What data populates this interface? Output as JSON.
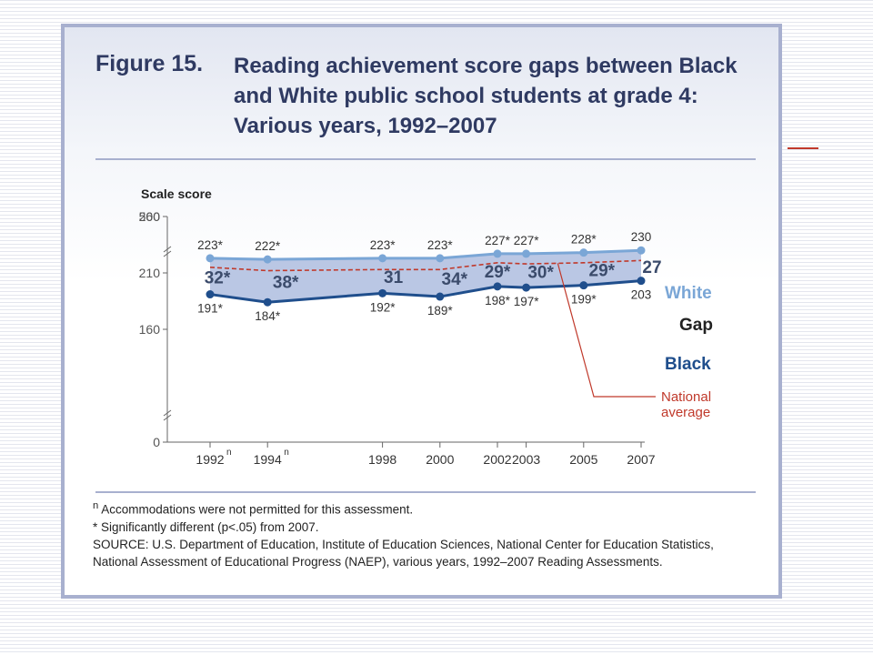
{
  "slide": {
    "accent_color": "#c0392b"
  },
  "figure": {
    "number": "Figure 15.",
    "title": "Reading achievement score gaps between Black and White public school students at grade 4: Various years, 1992–2007"
  },
  "chart_data": {
    "type": "line",
    "ylabel": "Scale score",
    "y_ticks": [
      "0",
      "160",
      "210",
      "260",
      "500"
    ],
    "axis_breaks": "between 0 and 160, and between 260 and 500",
    "categories": [
      "1992",
      "1994",
      "1998",
      "2000",
      "2002",
      "2003",
      "2005",
      "2007"
    ],
    "category_superscripts": [
      "n",
      "n",
      "",
      "",
      "",
      "",
      "",
      ""
    ],
    "series": [
      {
        "name": "White",
        "color": "#7aa6d6",
        "values": [
          223,
          222,
          223,
          223,
          227,
          227,
          228,
          230
        ],
        "labels": [
          "223*",
          "222*",
          "223*",
          "223*",
          "227*",
          "227*",
          "228*",
          "230"
        ]
      },
      {
        "name": "Black",
        "color": "#1f4e8c",
        "values": [
          191,
          184,
          192,
          189,
          198,
          197,
          199,
          203
        ],
        "labels": [
          "191*",
          "184*",
          "192*",
          "189*",
          "198*",
          "197*",
          "199*",
          "203"
        ]
      }
    ],
    "gap": {
      "name": "Gap",
      "values": [
        32,
        38,
        31,
        34,
        29,
        30,
        29,
        27
      ],
      "labels": [
        "32*",
        "38*",
        "31",
        "34*",
        "29*",
        "30*",
        "29*",
        "27"
      ]
    },
    "national_average": {
      "label_line1": "National",
      "label_line2": "average",
      "color": "#c0392b",
      "values": [
        215,
        212,
        213,
        213,
        219,
        218,
        219,
        221
      ]
    },
    "fill_color": "#b6c4e3"
  },
  "notes": {
    "n_marker": "n",
    "accommodations": " Accommodations were not permitted for this assessment.",
    "significance": "* Significantly different (p<.05) from 2007.",
    "source": "SOURCE: U.S. Department of Education, Institute of Education Sciences, National Center for Education Statistics, National Assessment of Educational Progress (NAEP), various years, 1992–2007 Reading Assessments."
  }
}
